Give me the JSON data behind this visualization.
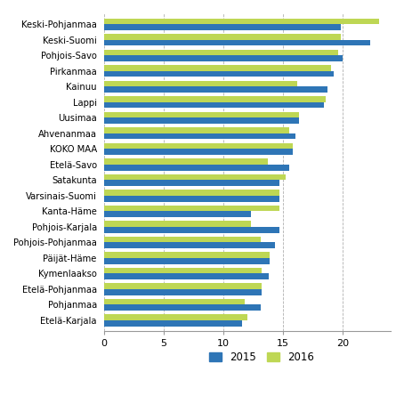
{
  "categories": [
    "Keski-Pohjanmaa",
    "Keski-Suomi",
    "Pohjois-Savo",
    "Pirkanmaa",
    "Kainuu",
    "Lappi",
    "Uusimaa",
    "Ahvenanmaa",
    "KOKO MAA",
    "Etelä-Savo",
    "Satakunta",
    "Varsinais-Suomi",
    "Kanta-Häme",
    "Pohjois-Karjala",
    "Pohjois-Pohjanmaa",
    "Päijät-Häme",
    "Kymenlaakso",
    "Etelä-Pohjanmaa",
    "Pohjanmaa",
    "Etelä-Karjala"
  ],
  "values_2015": [
    19.8,
    22.3,
    20.0,
    19.2,
    18.7,
    18.4,
    16.3,
    16.0,
    15.8,
    15.5,
    14.7,
    14.7,
    12.3,
    14.7,
    14.3,
    13.9,
    13.8,
    13.2,
    13.1,
    11.6
  ],
  "values_2016": [
    23.0,
    19.8,
    19.6,
    19.0,
    16.2,
    18.6,
    16.3,
    15.5,
    15.8,
    13.7,
    15.2,
    14.7,
    14.7,
    12.3,
    13.1,
    13.9,
    13.2,
    13.2,
    11.8,
    12.0
  ],
  "color_2015": "#2e75b6",
  "color_2016": "#bed754",
  "background_color": "#ffffff",
  "xlim": [
    0,
    24
  ],
  "xticks": [
    0,
    5,
    10,
    15,
    20
  ],
  "grid_color": "#b0b0b0",
  "legend_labels": [
    "2015",
    "2016"
  ],
  "bar_height": 0.38,
  "figsize": [
    4.54,
    4.54
  ],
  "dpi": 100
}
